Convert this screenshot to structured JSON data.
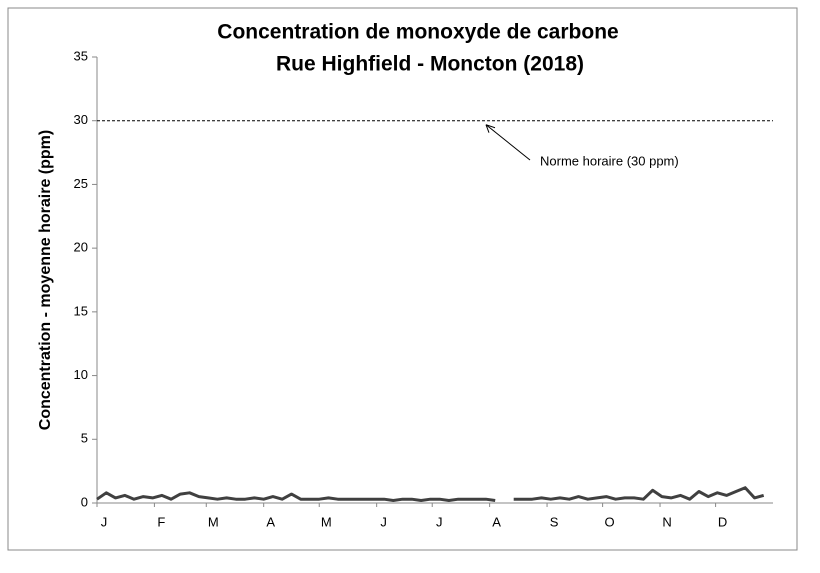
{
  "chart_data": {
    "type": "line",
    "title": [
      "Concentration de monoxyde de carbone",
      "Rue Highfield - Moncton (2018)"
    ],
    "y_label": "Concentration - moyenne horaire (ppm)",
    "xlim": [
      0,
      365
    ],
    "xticks": [
      {
        "value": 0,
        "label": "J"
      },
      {
        "value": 31,
        "label": "F"
      },
      {
        "value": 59,
        "label": "M"
      },
      {
        "value": 90,
        "label": "A"
      },
      {
        "value": 120,
        "label": "M"
      },
      {
        "value": 151,
        "label": "J"
      },
      {
        "value": 181,
        "label": "J"
      },
      {
        "value": 212,
        "label": "A"
      },
      {
        "value": 243,
        "label": "S"
      },
      {
        "value": 273,
        "label": "O"
      },
      {
        "value": 304,
        "label": "N"
      },
      {
        "value": 334,
        "label": "D"
      }
    ],
    "ylim": [
      0,
      35
    ],
    "yticks": [
      0,
      5,
      10,
      15,
      20,
      25,
      30,
      35
    ],
    "x": [
      0,
      5,
      10,
      15,
      20,
      25,
      30,
      35,
      40,
      45,
      50,
      55,
      60,
      65,
      70,
      75,
      80,
      85,
      90,
      95,
      100,
      105,
      110,
      115,
      120,
      125,
      130,
      135,
      140,
      145,
      150,
      155,
      160,
      165,
      170,
      175,
      180,
      185,
      190,
      195,
      200,
      205,
      210,
      215,
      220,
      225,
      230,
      235,
      240,
      245,
      250,
      255,
      260,
      265,
      270,
      275,
      280,
      285,
      290,
      295,
      300,
      305,
      310,
      315,
      320,
      325,
      330,
      335,
      340,
      345,
      350,
      355,
      360
    ],
    "series": [
      {
        "color": "#404040",
        "values": [
          0.3,
          0.8,
          0.4,
          0.6,
          0.3,
          0.5,
          0.4,
          0.6,
          0.3,
          0.7,
          0.8,
          0.5,
          0.4,
          0.3,
          0.4,
          0.3,
          0.3,
          0.4,
          0.3,
          0.5,
          0.3,
          0.7,
          0.3,
          0.3,
          0.3,
          0.4,
          0.3,
          0.3,
          0.3,
          0.3,
          0.3,
          0.3,
          0.2,
          0.3,
          0.3,
          0.2,
          0.3,
          0.3,
          0.2,
          0.3,
          0.3,
          0.3,
          0.3,
          0.2,
          null,
          0.3,
          0.3,
          0.3,
          0.4,
          0.3,
          0.4,
          0.3,
          0.5,
          0.3,
          0.4,
          0.5,
          0.3,
          0.4,
          0.4,
          0.3,
          1.0,
          0.5,
          0.4,
          0.6,
          0.3,
          0.9,
          0.5,
          0.8,
          0.6,
          0.9,
          1.2,
          0.4,
          0.6
        ]
      }
    ],
    "reference_line": {
      "value": 30,
      "label": "Norme horaire (30 ppm)"
    }
  }
}
